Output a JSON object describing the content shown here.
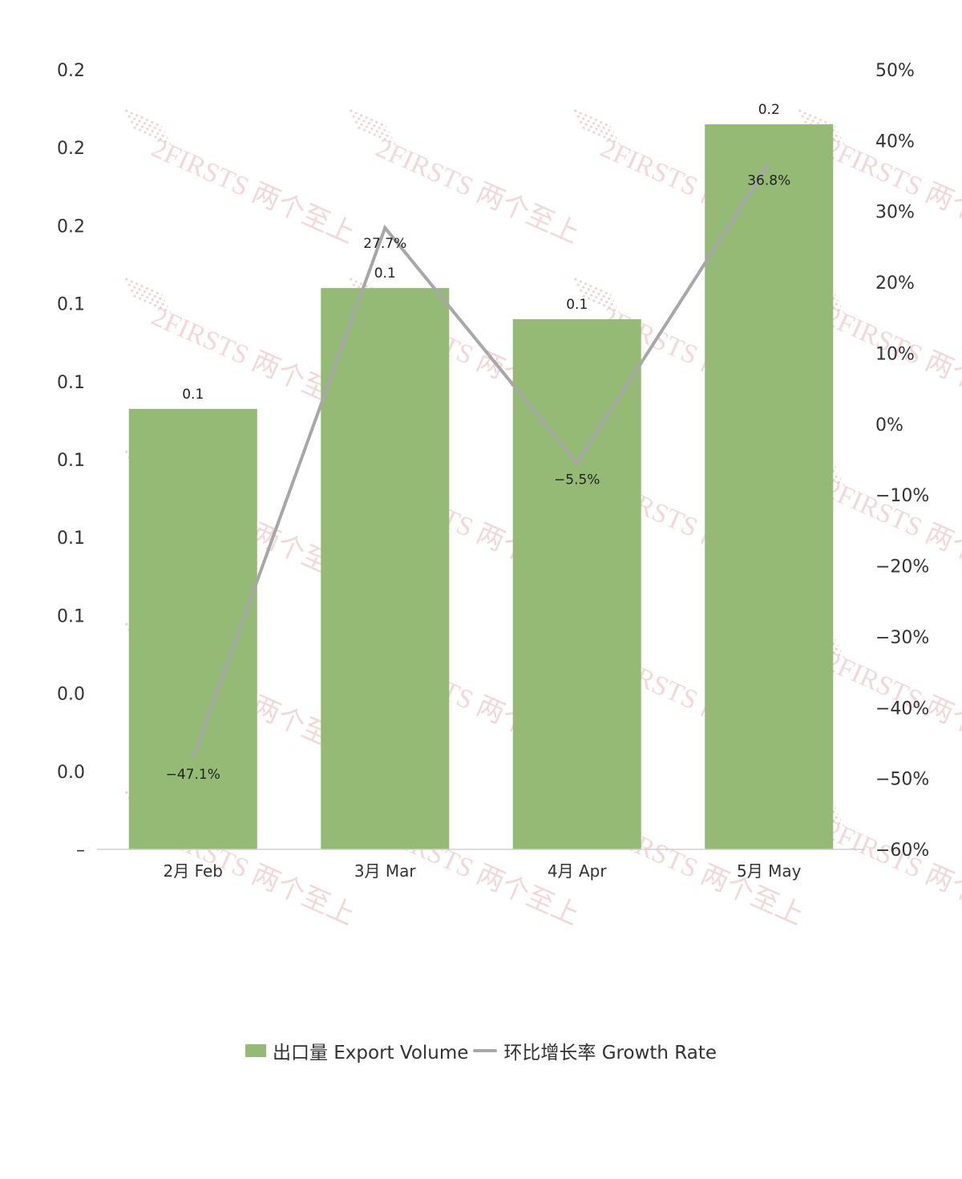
{
  "colors": {
    "bar": "#94ba75",
    "line": "#a7a7a9",
    "axis": "#d0d0d0",
    "watermark": "#e9b9b9"
  },
  "watermark": {
    "text": "2FIRSTS 两个至上"
  },
  "chart_data": {
    "type": "bar",
    "categories": [
      "2月 Feb",
      "3月 Mar",
      "4月 Apr",
      "5月 May"
    ],
    "series": [
      {
        "name": "出口量 Export Volume",
        "type": "bar",
        "axis": "left",
        "values": [
          0.113,
          0.144,
          0.136,
          0.186
        ],
        "data_labels": [
          "0.1",
          "0.1",
          "0.1",
          "0.2"
        ]
      },
      {
        "name": "环比增长率 Growth Rate",
        "type": "line",
        "axis": "right",
        "values": [
          -47.1,
          27.7,
          -5.5,
          36.8
        ],
        "data_labels": [
          "−47.1%",
          "27.7%",
          "−5.5%",
          "36.8%"
        ]
      }
    ],
    "left_axis": {
      "ylim": [
        0,
        0.2
      ],
      "tick_labels": [
        "–",
        "0.0",
        "0.0",
        "0.1",
        "0.1",
        "0.1",
        "0.1",
        "0.1",
        "0.2",
        "0.2",
        "0.2"
      ]
    },
    "right_axis": {
      "ylim": [
        -60,
        50
      ],
      "tick_labels": [
        "−60%",
        "−50%",
        "−40%",
        "−30%",
        "−20%",
        "−10%",
        "0%",
        "10%",
        "20%",
        "30%",
        "40%",
        "50%"
      ]
    },
    "legend": {
      "position": "bottom",
      "entries": [
        "出口量 Export Volume",
        "环比增长率 Growth Rate"
      ]
    },
    "grid": false
  }
}
